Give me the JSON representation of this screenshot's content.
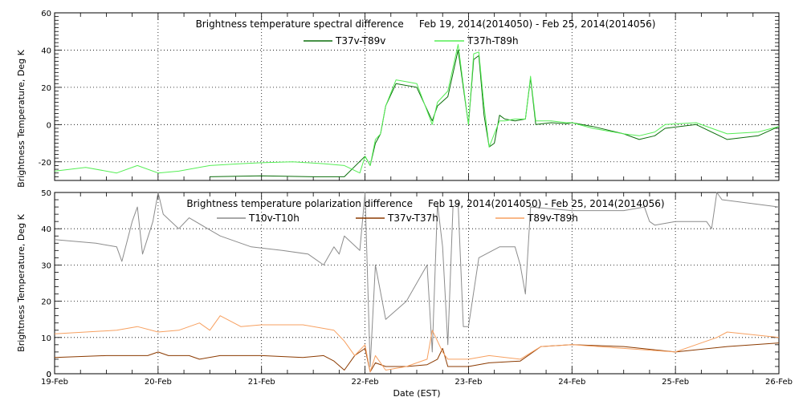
{
  "chart_data": [
    {
      "type": "line",
      "title": "Brightness temperature spectral difference     Feb 19, 2014(2014050) - Feb 25, 2014(2014056)",
      "ylabel": "Brightness Temperature, Deg K",
      "xlim": [
        0,
        7
      ],
      "ylim": [
        -30,
        60
      ],
      "yticks": [
        -20,
        0,
        20,
        40,
        60
      ],
      "grid": true,
      "legend_position": "top-center",
      "series": [
        {
          "name": "T37v-T89v",
          "color": "#0a6e0a",
          "x": [
            0.0,
            0.6,
            1.0,
            1.5,
            2.0,
            2.5,
            2.8,
            3.0,
            3.05,
            3.1,
            3.15,
            3.2,
            3.3,
            3.5,
            3.65,
            3.7,
            3.8,
            3.9,
            4.0,
            4.05,
            4.1,
            4.15,
            4.2,
            4.25,
            4.3,
            4.35,
            4.45,
            4.55,
            4.6,
            4.65,
            4.8,
            4.95,
            5.0,
            5.2,
            5.5,
            5.65,
            5.8,
            5.9,
            6.2,
            6.5,
            6.8,
            7.0
          ],
          "y": [
            null,
            null,
            null,
            -28,
            -27.5,
            -28,
            -28,
            -17,
            -22,
            -10,
            -5,
            10,
            22,
            20,
            2,
            10,
            15,
            40,
            0,
            35,
            37,
            5,
            -12,
            -10,
            5,
            3,
            2,
            3,
            25,
            0,
            1,
            0.5,
            1,
            -1,
            -5,
            -8,
            -6,
            -2,
            0,
            -8,
            -6,
            -1
          ]
        },
        {
          "name": "T37h-T89h",
          "color": "#55ee55",
          "x": [
            0.0,
            0.3,
            0.6,
            0.8,
            1.0,
            1.2,
            1.5,
            1.8,
            2.0,
            2.3,
            2.6,
            2.8,
            2.95,
            3.0,
            3.05,
            3.1,
            3.15,
            3.2,
            3.3,
            3.5,
            3.65,
            3.7,
            3.8,
            3.9,
            4.0,
            4.05,
            4.1,
            4.15,
            4.2,
            4.25,
            4.3,
            4.35,
            4.45,
            4.55,
            4.6,
            4.65,
            4.8,
            4.95,
            5.0,
            5.2,
            5.5,
            5.65,
            5.8,
            5.9,
            6.2,
            6.5,
            6.8,
            7.0
          ],
          "y": [
            -25,
            -23,
            -26,
            -22,
            -26,
            -25,
            -22,
            -21,
            -20.5,
            -20,
            -21,
            -22,
            -26,
            -17,
            -22,
            -8,
            -5,
            10,
            24,
            22,
            0,
            12,
            18,
            43,
            0,
            38,
            39,
            10,
            -12,
            -5,
            2,
            2,
            3,
            3,
            26,
            2,
            2,
            1,
            1,
            -2,
            -5,
            -6,
            -4,
            0,
            1,
            -5,
            -4,
            -1
          ]
        }
      ]
    },
    {
      "type": "line",
      "title": "Brightness temperature polarization difference     Feb 19, 2014(2014050) - Feb 25, 2014(2014056)",
      "ylabel": "Brightness Temperature, Deg K",
      "xlabel": "Date (EST)",
      "xlim": [
        0,
        7
      ],
      "ylim": [
        0,
        50
      ],
      "yticks": [
        0,
        10,
        20,
        30,
        40,
        50
      ],
      "categories": [
        "19-Feb",
        "20-Feb",
        "21-Feb",
        "22-Feb",
        "23-Feb",
        "24-Feb",
        "25-Feb",
        "26-Feb"
      ],
      "grid": true,
      "legend_position": "top-center",
      "series": [
        {
          "name": "T10v-T10h",
          "color": "#8c8c8c",
          "x": [
            0.0,
            0.4,
            0.6,
            0.65,
            0.75,
            0.8,
            0.85,
            0.95,
            1.0,
            1.05,
            1.2,
            1.3,
            1.6,
            1.9,
            2.2,
            2.45,
            2.6,
            2.7,
            2.75,
            2.8,
            2.95,
            3.0,
            3.05,
            3.1,
            3.2,
            3.4,
            3.6,
            3.65,
            3.7,
            3.75,
            3.8,
            3.85,
            3.9,
            3.95,
            4.0,
            4.1,
            4.3,
            4.45,
            4.5,
            4.55,
            4.6,
            5.0,
            5.5,
            5.7,
            5.75,
            5.8,
            6.0,
            6.3,
            6.35,
            6.4,
            6.45,
            7.0
          ],
          "y": [
            37,
            36,
            35,
            31,
            42,
            46,
            33,
            42,
            50,
            44,
            40,
            43,
            38,
            35,
            34,
            33,
            30,
            35,
            33,
            38,
            34,
            50,
            2,
            30,
            15,
            20,
            30,
            6,
            47,
            35,
            8,
            46,
            47,
            13,
            13,
            32,
            35,
            35,
            30,
            22,
            46,
            45,
            45,
            46,
            42,
            41,
            42,
            42,
            40,
            50,
            48,
            46
          ]
        },
        {
          "name": "T37v-T37h",
          "color": "#8b3a00",
          "x": [
            0.0,
            0.5,
            0.75,
            0.9,
            1.0,
            1.1,
            1.3,
            1.4,
            1.6,
            1.8,
            2.0,
            2.4,
            2.6,
            2.7,
            2.8,
            2.9,
            3.0,
            3.05,
            3.1,
            3.2,
            3.4,
            3.6,
            3.7,
            3.75,
            3.8,
            3.9,
            4.0,
            4.2,
            4.5,
            4.7,
            5.0,
            5.5,
            6.0,
            6.5,
            7.0
          ],
          "y": [
            4.5,
            5,
            5,
            5,
            6,
            5,
            5,
            4,
            5,
            5,
            5,
            4.5,
            5,
            3.5,
            1,
            5,
            7,
            0.5,
            3,
            2,
            2,
            2.5,
            4,
            7,
            2,
            2,
            2,
            3,
            3.5,
            7.5,
            8,
            7.5,
            6,
            7.5,
            8.5
          ]
        },
        {
          "name": "T89v-T89h",
          "color": "#f7a060",
          "x": [
            0.0,
            0.3,
            0.6,
            0.8,
            1.0,
            1.2,
            1.4,
            1.5,
            1.6,
            1.8,
            2.0,
            2.4,
            2.7,
            2.8,
            2.9,
            3.0,
            3.05,
            3.1,
            3.2,
            3.4,
            3.6,
            3.65,
            3.7,
            3.75,
            3.8,
            3.9,
            4.0,
            4.2,
            4.5,
            4.7,
            5.0,
            5.5,
            6.0,
            6.2,
            6.4,
            6.5,
            7.0
          ],
          "y": [
            11,
            11.5,
            12,
            13,
            11.5,
            12,
            14,
            12,
            16,
            13,
            13.5,
            13.5,
            12,
            9,
            5,
            8,
            0.5,
            5,
            1,
            2,
            4,
            12,
            9,
            6,
            4,
            4,
            4,
            5,
            4,
            7.5,
            8,
            7,
            6,
            8,
            10,
            11.5,
            10
          ]
        }
      ]
    }
  ]
}
